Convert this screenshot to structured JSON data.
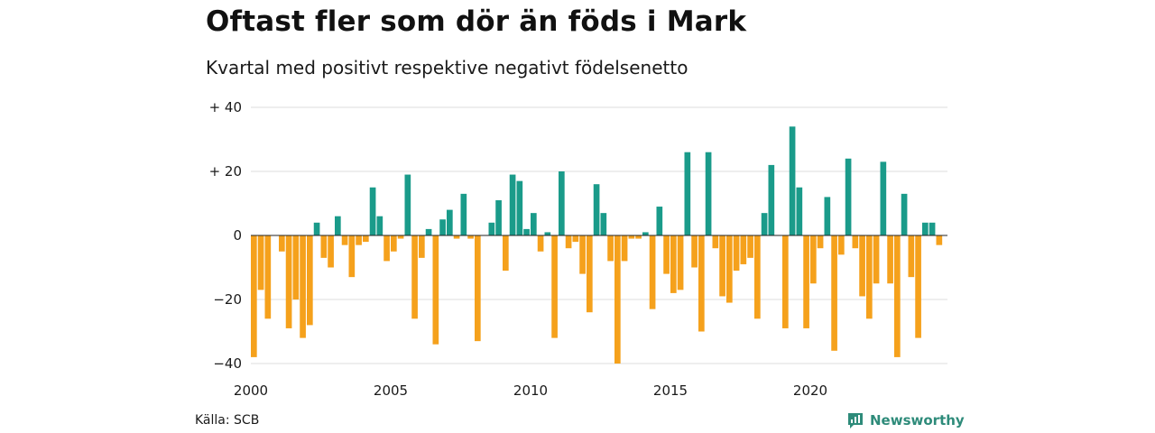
{
  "title": "Oftast fler som dör än föds i Mark",
  "subtitle": "Kvartal med positivt respektive negativt födelsenetto",
  "source": "Källa: SCB",
  "brand": "Newsworthy",
  "colors": {
    "positive": "#1a9b8a",
    "negative": "#f5a11c",
    "grid": "#dddddd",
    "brand": "#2e8b7a"
  },
  "chart_data": {
    "type": "bar",
    "ylim": [
      -40,
      40
    ],
    "y_ticks": [
      {
        "value": 40,
        "label": "+ 40"
      },
      {
        "value": 20,
        "label": "+ 20"
      },
      {
        "value": 0,
        "label": "0"
      },
      {
        "value": -20,
        "label": "−20"
      },
      {
        "value": -40,
        "label": "−40"
      }
    ],
    "x_ticks": [
      "2000",
      "2005",
      "2010",
      "2015",
      "2020"
    ],
    "start_year": 2000,
    "values": [
      -38,
      -17,
      -26,
      0,
      -5,
      -29,
      -20,
      -32,
      -28,
      4,
      -7,
      -10,
      6,
      -3,
      -13,
      -3,
      -2,
      15,
      6,
      -8,
      -5,
      -1,
      19,
      -26,
      -7,
      2,
      -34,
      5,
      8,
      -1,
      13,
      -1,
      -33,
      0,
      4,
      11,
      -11,
      19,
      17,
      2,
      7,
      -5,
      1,
      -32,
      20,
      -4,
      -2,
      -12,
      -24,
      16,
      7,
      -8,
      -40,
      -8,
      -1,
      -1,
      1,
      -23,
      9,
      -12,
      -18,
      -17,
      26,
      -10,
      -30,
      26,
      -4,
      -19,
      -21,
      -11,
      -9,
      -7,
      -26,
      7,
      22,
      0,
      -29,
      34,
      15,
      -29,
      -15,
      -4,
      12,
      -36,
      -6,
      24,
      -4,
      -19,
      -26,
      -15,
      23,
      -15,
      -38,
      13,
      -13,
      -32,
      4,
      4,
      -3
    ]
  }
}
